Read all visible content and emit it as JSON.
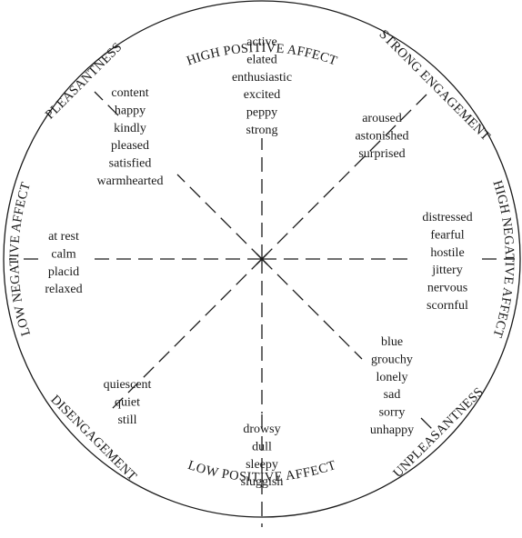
{
  "labels": {
    "top": "HIGH POSITIVE AFFECT",
    "bottom": "LOW POSITIVE AFFECT",
    "left": "LOW NEGATIVE AFFECT",
    "right": "HIGH NEGATIVE AFFECT",
    "upper_left": "PLEASANTNESS",
    "upper_right": "STRONG ENGAGEMENT",
    "lower_left": "DISENGAGEMENT",
    "lower_right": "UNPLEASANTNESS"
  },
  "word_lists": {
    "top": [
      "active",
      "elated",
      "enthusiastic",
      "excited",
      "peppy",
      "strong"
    ],
    "upper_right": [
      "aroused",
      "astonished",
      "surprised"
    ],
    "right": [
      "distressed",
      "fearful",
      "hostile",
      "jittery",
      "nervous",
      "scornful"
    ],
    "lower_right": [
      "blue",
      "grouchy",
      "lonely",
      "sad",
      "sorry",
      "unhappy"
    ],
    "bottom": [
      "drowsy",
      "dull",
      "sleepy",
      "sluggish"
    ],
    "lower_left": [
      "quiescent",
      "quiet",
      "still"
    ],
    "left": [
      "at rest",
      "calm",
      "placid",
      "relaxed"
    ],
    "upper_left": [
      "content",
      "happy",
      "kindly",
      "pleased",
      "satisfied",
      "warmhearted"
    ]
  }
}
